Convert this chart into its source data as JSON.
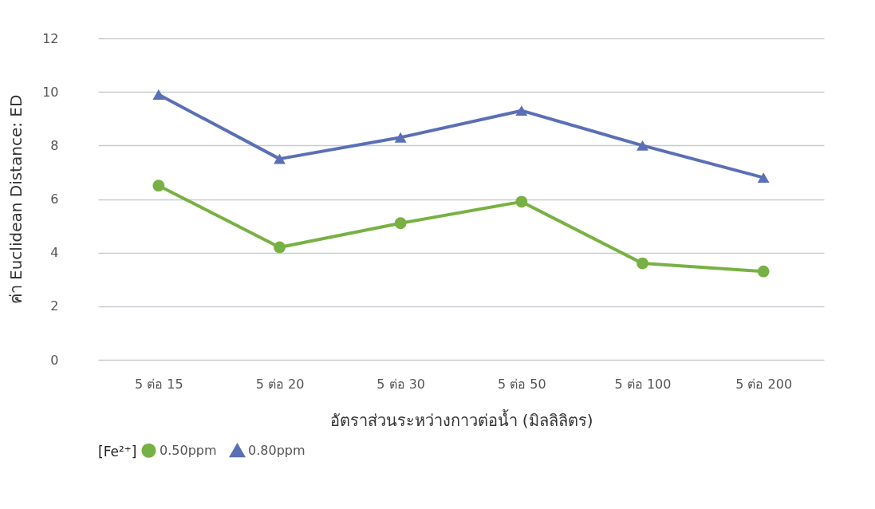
{
  "chart_data": {
    "type": "line",
    "xlabel": "อัตราส่วนระหว่างกาวต่อน้ำ (มิลลิลิตร)",
    "ylabel": "ค่า Euclidean Distance: ED",
    "legend_title": "[Fe²⁺]",
    "categories": [
      "5 ต่อ 15",
      "5 ต่อ 20",
      "5 ต่อ 30",
      "5 ต่อ 50",
      "5 ต่อ 100",
      "5 ต่อ 200"
    ],
    "series": [
      {
        "name": "0.50ppm",
        "color": "#78b143",
        "marker": "circle",
        "values": [
          6.5,
          4.2,
          5.1,
          5.9,
          3.6,
          3.3
        ]
      },
      {
        "name": "0.80ppm",
        "color": "#5a6fb6",
        "marker": "triangle",
        "values": [
          9.9,
          7.5,
          8.3,
          9.3,
          8.0,
          6.8
        ]
      }
    ],
    "ylim": [
      0,
      12
    ],
    "yticks": [
      0,
      2,
      4,
      6,
      8,
      10,
      12
    ],
    "grid": "y",
    "legend": "bottom"
  }
}
